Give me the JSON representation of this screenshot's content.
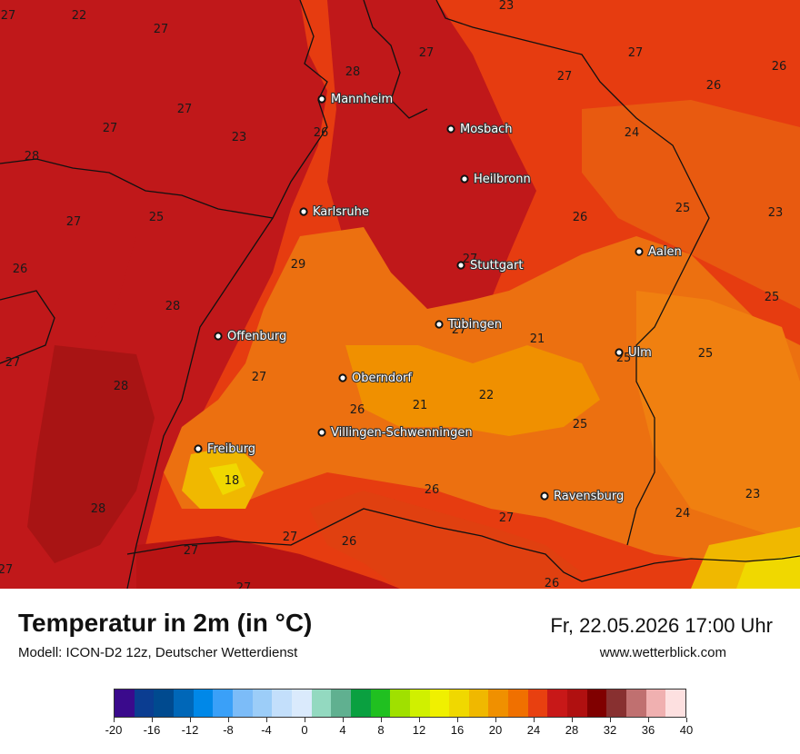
{
  "map": {
    "cities": [
      {
        "name": "Mannheim",
        "dot": [
          354,
          109
        ]
      },
      {
        "name": "Mosbach",
        "dot": [
          496,
          142
        ]
      },
      {
        "name": "Heilbronn",
        "dot": [
          511,
          197
        ]
      },
      {
        "name": "Karlsruhe",
        "dot": [
          334,
          233
        ]
      },
      {
        "name": "Aalen",
        "dot": [
          703,
          277
        ]
      },
      {
        "name": "Stuttgart",
        "dot": [
          507,
          292
        ]
      },
      {
        "name": "Tübingen",
        "dot": [
          483,
          357
        ]
      },
      {
        "name": "Offenburg",
        "dot": [
          240,
          370
        ]
      },
      {
        "name": "Ulm",
        "dot": [
          681,
          388
        ]
      },
      {
        "name": "Oberndorf",
        "dot": [
          377,
          416
        ]
      },
      {
        "name": "Villingen-Schwenningen",
        "dot": [
          354,
          476
        ]
      },
      {
        "name": "Freiburg",
        "dot": [
          218,
          494
        ]
      },
      {
        "name": "Ravensburg",
        "dot": [
          599,
          546
        ]
      }
    ],
    "labels": [
      {
        "v": "27",
        "p": [
          9,
          16
        ]
      },
      {
        "v": "22",
        "p": [
          87,
          16
        ]
      },
      {
        "v": "27",
        "p": [
          177,
          31
        ]
      },
      {
        "v": "23",
        "p": [
          557,
          5
        ]
      },
      {
        "v": "27",
        "p": [
          469,
          57
        ]
      },
      {
        "v": "27",
        "p": [
          699,
          57
        ]
      },
      {
        "v": "26",
        "p": [
          857,
          72
        ]
      },
      {
        "v": "28",
        "p": [
          388,
          78
        ]
      },
      {
        "v": "27",
        "p": [
          621,
          83
        ]
      },
      {
        "v": "26",
        "p": [
          785,
          93
        ]
      },
      {
        "v": "27",
        "p": [
          203,
          119
        ]
      },
      {
        "v": "27",
        "p": [
          121,
          140
        ]
      },
      {
        "v": "26",
        "p": [
          353,
          145
        ]
      },
      {
        "v": "24",
        "p": [
          695,
          145
        ]
      },
      {
        "v": "23",
        "p": [
          263,
          150
        ]
      },
      {
        "v": "28",
        "p": [
          35,
          171
        ]
      },
      {
        "v": "25",
        "p": [
          172,
          238
        ]
      },
      {
        "v": "26",
        "p": [
          638,
          238
        ]
      },
      {
        "v": "25",
        "p": [
          751,
          228
        ]
      },
      {
        "v": "23",
        "p": [
          853,
          233
        ]
      },
      {
        "v": "27",
        "p": [
          81,
          243
        ]
      },
      {
        "v": "27",
        "p": [
          517,
          284
        ]
      },
      {
        "v": "29",
        "p": [
          328,
          290
        ]
      },
      {
        "v": "26",
        "p": [
          22,
          295
        ]
      },
      {
        "v": "25",
        "p": [
          849,
          326
        ]
      },
      {
        "v": "28",
        "p": [
          190,
          336
        ]
      },
      {
        "v": "27",
        "p": [
          505,
          362
        ]
      },
      {
        "v": "21",
        "p": [
          591,
          372
        ]
      },
      {
        "v": "25",
        "p": [
          776,
          388
        ]
      },
      {
        "v": "25",
        "p": [
          686,
          393
        ]
      },
      {
        "v": "27",
        "p": [
          14,
          398
        ]
      },
      {
        "v": "27",
        "p": [
          285,
          414
        ]
      },
      {
        "v": "28",
        "p": [
          133,
          424
        ]
      },
      {
        "v": "22",
        "p": [
          535,
          434
        ]
      },
      {
        "v": "21",
        "p": [
          462,
          445
        ]
      },
      {
        "v": "26",
        "p": [
          393,
          450
        ]
      },
      {
        "v": "25",
        "p": [
          638,
          466
        ]
      },
      {
        "v": "18",
        "p": [
          255,
          528
        ]
      },
      {
        "v": "26",
        "p": [
          475,
          538
        ]
      },
      {
        "v": "23",
        "p": [
          828,
          543
        ]
      },
      {
        "v": "28",
        "p": [
          108,
          559
        ]
      },
      {
        "v": "24",
        "p": [
          751,
          564
        ]
      },
      {
        "v": "27",
        "p": [
          557,
          569
        ]
      },
      {
        "v": "27",
        "p": [
          319,
          590
        ]
      },
      {
        "v": "26",
        "p": [
          384,
          595
        ]
      },
      {
        "v": "27",
        "p": [
          210,
          605
        ]
      },
      {
        "v": "27",
        "p": [
          6,
          626
        ]
      },
      {
        "v": "26",
        "p": [
          607,
          641
        ]
      },
      {
        "v": "27",
        "p": [
          268,
          646
        ]
      }
    ]
  },
  "footer": {
    "title": "Temperatur in 2m (in °C)",
    "model": "Modell: ICON-D2 12z, Deutscher Wetterdienst",
    "datetime": "Fr, 22.05.2026 17:00 Uhr",
    "website": "www.wetterblick.com"
  },
  "legend": {
    "colors": [
      "#3a0a8c",
      "#0b3d91",
      "#004a8f",
      "#0067b8",
      "#0088e8",
      "#3aa0f8",
      "#7cbcf8",
      "#9ccdf8",
      "#c3dffb",
      "#daeafc",
      "#93d9c0",
      "#60b090",
      "#0aa040",
      "#20c020",
      "#a0e000",
      "#d0f000",
      "#f0f000",
      "#f0d800",
      "#f0b800",
      "#f09000",
      "#f07000",
      "#e84010",
      "#c81818",
      "#b01010",
      "#800000",
      "#883030",
      "#c07070",
      "#f0b0b0",
      "#fde0e0"
    ],
    "ticks": [
      "-20",
      "-16",
      "-12",
      "-8",
      "-4",
      "0",
      "4",
      "8",
      "12",
      "16",
      "20",
      "24",
      "28",
      "32",
      "36",
      "40"
    ]
  }
}
